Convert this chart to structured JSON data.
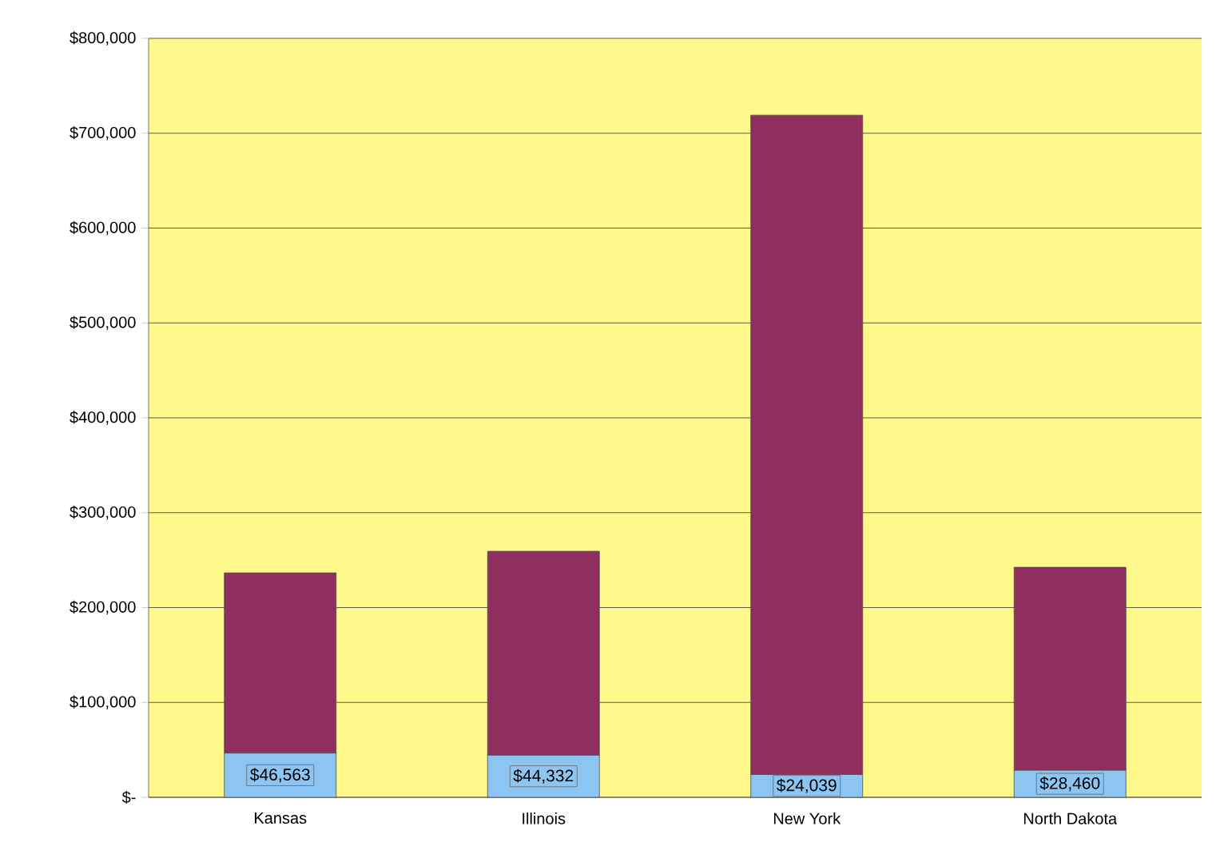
{
  "chart_data": {
    "type": "bar",
    "stacked": true,
    "categories": [
      "Kansas",
      "Illinois",
      "New York",
      "North Dakota"
    ],
    "series": [
      {
        "color": "#8cc4f2",
        "values": [
          46563,
          44332,
          24039,
          28460
        ],
        "value_labels": [
          "$46,563",
          "$44,332",
          "$24,039",
          "$28,460"
        ]
      },
      {
        "color": "#8e2f5f",
        "values": [
          190000,
          215000,
          695000,
          214000
        ]
      }
    ],
    "ylim": [
      0,
      800000
    ],
    "yticks": [
      {
        "value": 0,
        "label": "$-"
      },
      {
        "value": 100000,
        "label": "$100,000"
      },
      {
        "value": 200000,
        "label": "$200,000"
      },
      {
        "value": 300000,
        "label": "$300,000"
      },
      {
        "value": 400000,
        "label": "$400,000"
      },
      {
        "value": 500000,
        "label": "$500,000"
      },
      {
        "value": 600000,
        "label": "$600,000"
      },
      {
        "value": 700000,
        "label": "$700,000"
      },
      {
        "value": 800000,
        "label": "$800,000"
      }
    ],
    "grid": "y"
  }
}
